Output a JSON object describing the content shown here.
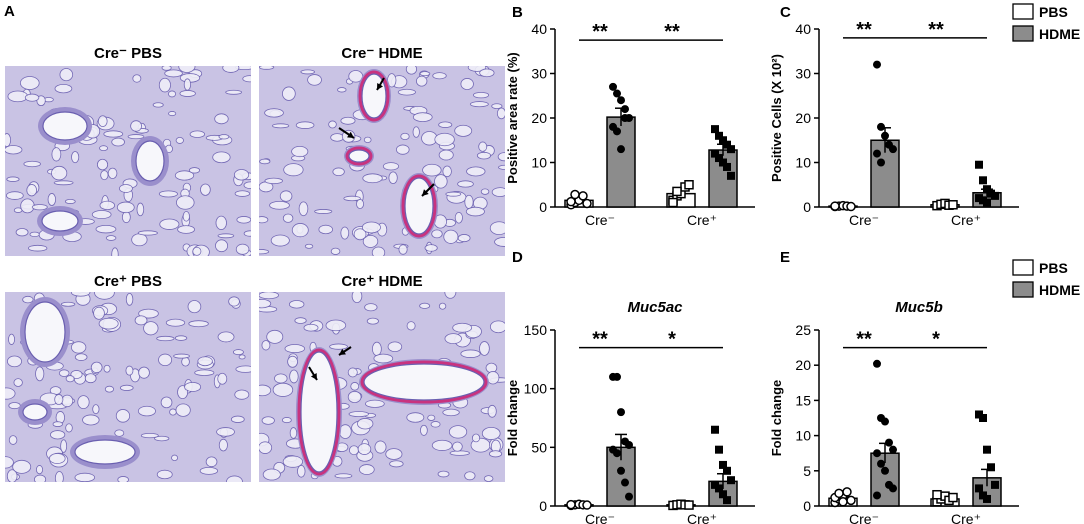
{
  "panels": {
    "A": {
      "letter": "A",
      "images": [
        {
          "title": "Cre⁻ PBS",
          "kind": "pbs"
        },
        {
          "title": "Cre⁻ HDME",
          "kind": "hdme"
        },
        {
          "title": "Cre⁺ PBS",
          "kind": "pbs"
        },
        {
          "title": "Cre⁺ HDME",
          "kind": "hdme"
        }
      ],
      "colors": {
        "tissue": "#c9c3e4",
        "stain": "#6a5fb0",
        "bg": "#efeef8",
        "mucus": "#c8337f"
      }
    }
  },
  "legend": {
    "items": [
      {
        "label": "PBS",
        "color": "#ffffff"
      },
      {
        "label": "HDME",
        "color": "#8c8c8c"
      }
    ]
  },
  "chart_data": [
    {
      "panel": "B",
      "type": "bar",
      "title": "",
      "ylabel": "Positive area rate (%)",
      "ylim": [
        0,
        40
      ],
      "yticks": [
        0,
        10,
        20,
        30,
        40
      ],
      "groups": [
        "Cre⁻",
        "Cre⁺"
      ],
      "series": [
        {
          "name": "PBS",
          "values": [
            1.5,
            3.0
          ],
          "errors": [
            0.6,
            1.0
          ],
          "points": [
            [
              0.5,
              1.0,
              1.5,
              2.5,
              0.8,
              1.2,
              2.8
            ],
            [
              1.5,
              2.5,
              3.0,
              4.5,
              5.0,
              1.0,
              3.5
            ]
          ]
        },
        {
          "name": "HDME",
          "values": [
            20.2,
            12.8
          ],
          "errors": [
            2.0,
            1.3
          ],
          "points": [
            [
              27,
              25.5,
              24,
              22,
              20,
              18,
              17,
              13,
              20
            ],
            [
              17.5,
              16,
              15,
              14,
              13,
              12,
              11,
              10,
              9,
              7
            ]
          ]
        }
      ],
      "significance": [
        {
          "from": "Cre⁻ PBS",
          "to": "Cre⁻ HDME",
          "label": "**",
          "y": 37.5
        },
        {
          "from": "Cre⁻ HDME",
          "to": "Cre⁺ HDME",
          "label": "**",
          "y": 37.5
        }
      ]
    },
    {
      "panel": "C",
      "type": "bar",
      "title": "",
      "ylabel": "Positive Cells (X 10²)",
      "ylim": [
        0,
        40
      ],
      "yticks": [
        0,
        10,
        20,
        30,
        40
      ],
      "groups": [
        "Cre⁻",
        "Cre⁺"
      ],
      "series": [
        {
          "name": "PBS",
          "values": [
            0.2,
            0.5
          ],
          "errors": [
            0.1,
            0.2
          ],
          "points": [
            [
              0.1,
              0.2,
              0.3,
              0.2,
              0.1,
              0.2
            ],
            [
              0.3,
              0.6,
              0.8,
              0.4,
              0.5
            ]
          ]
        },
        {
          "name": "HDME",
          "values": [
            15.0,
            3.2
          ],
          "errors": [
            2.8,
            0.8
          ],
          "points": [
            [
              32,
              18,
              16,
              14,
              13,
              12,
              10
            ],
            [
              9.5,
              6,
              4,
              3,
              2.5,
              2,
              1.5,
              1
            ]
          ]
        }
      ],
      "significance": [
        {
          "from": "Cre⁻ PBS",
          "to": "Cre⁻ HDME",
          "label": "**",
          "y": 38
        },
        {
          "from": "Cre⁻ HDME",
          "to": "Cre⁺ HDME",
          "label": "**",
          "y": 38
        }
      ]
    },
    {
      "panel": "D",
      "type": "bar",
      "title": "Muc5ac",
      "ylabel": "Fold change",
      "ylim": [
        0,
        150
      ],
      "yticks": [
        0,
        50,
        100,
        150
      ],
      "groups": [
        "Cre⁻",
        "Cre⁺"
      ],
      "series": [
        {
          "name": "PBS",
          "values": [
            1.0,
            1.0
          ],
          "errors": [
            0.3,
            0.3
          ],
          "points": [
            [
              0.5,
              1.0,
              1.5,
              1.0,
              0.8,
              1.2
            ],
            [
              0.5,
              1.0,
              1.5,
              1.0,
              0.8
            ]
          ]
        },
        {
          "name": "HDME",
          "values": [
            50.0,
            21.0
          ],
          "errors": [
            11.0,
            6.5
          ],
          "points": [
            [
              110,
              110,
              80,
              55,
              52,
              48,
              45,
              30,
              20,
              8
            ],
            [
              65,
              48,
              35,
              30,
              22,
              18,
              15,
              10,
              5
            ]
          ]
        }
      ],
      "significance": [
        {
          "from": "Cre⁻ PBS",
          "to": "Cre⁻ HDME",
          "label": "**",
          "y": 135
        },
        {
          "from": "Cre⁻ HDME",
          "to": "Cre⁺ HDME",
          "label": "*",
          "y": 135
        }
      ]
    },
    {
      "panel": "E",
      "type": "bar",
      "title": "Muc5b",
      "ylabel": "Fold change",
      "ylim": [
        0,
        25
      ],
      "yticks": [
        0,
        5,
        10,
        15,
        20,
        25
      ],
      "groups": [
        "Cre⁻",
        "Cre⁺"
      ],
      "series": [
        {
          "name": "PBS",
          "values": [
            1.1,
            1.0
          ],
          "errors": [
            0.2,
            0.2
          ],
          "points": [
            [
              0.5,
              1.0,
              1.5,
              2.0,
              0.8,
              1.2,
              1.8,
              0.6
            ],
            [
              0.6,
              1.0,
              1.4,
              0.8,
              1.2,
              1.6
            ]
          ]
        },
        {
          "name": "HDME",
          "values": [
            7.5,
            4.0
          ],
          "errors": [
            1.4,
            1.2
          ],
          "points": [
            [
              20.2,
              12.5,
              12,
              9,
              8,
              7.5,
              6,
              5,
              3,
              2.5,
              1.5
            ],
            [
              13,
              12.5,
              8,
              5.5,
              3,
              2.5,
              1.5,
              1.0
            ]
          ]
        }
      ],
      "significance": [
        {
          "from": "Cre⁻ PBS",
          "to": "Cre⁻ HDME",
          "label": "**",
          "y": 22.5
        },
        {
          "from": "Cre⁻ HDME",
          "to": "Cre⁺ HDME",
          "label": "*",
          "y": 22.5
        }
      ]
    }
  ]
}
